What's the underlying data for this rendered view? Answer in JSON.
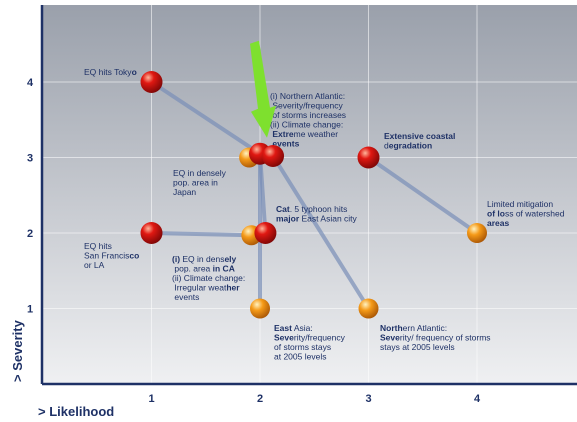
{
  "colors": {
    "background_top": "#9aa0ab",
    "background_mid": "#c9ccd2",
    "background_bottom": "#eff0f2",
    "axis": "#1e3166",
    "text": "#1e3166",
    "link_line": "#7a8fb8",
    "severe_bubble": "#e01812",
    "moderate_bubble": "#f59a18",
    "arrow": "#7ee02e"
  },
  "chart_data": {
    "type": "scatter",
    "title": "",
    "xlabel": "> Likelihood",
    "ylabel": "> Severity",
    "xlim": [
      0,
      5
    ],
    "ylim": [
      0,
      5
    ],
    "x_ticks": [
      "1",
      "2",
      "3",
      "4"
    ],
    "y_ticks": [
      "1",
      "2",
      "3",
      "4"
    ],
    "grid": true,
    "points": [
      {
        "id": "tokyo",
        "x": 1.0,
        "y": 4.0,
        "severity_class": "severe",
        "label": [
          [
            {
              "t": "EQ hits Toky"
            },
            {
              "t": "o",
              "b": true
            }
          ]
        ]
      },
      {
        "id": "sf-la",
        "x": 1.0,
        "y": 2.0,
        "severity_class": "severe",
        "label": [
          [
            {
              "t": "EQ hits"
            }
          ],
          [
            {
              "t": "San Francis"
            },
            {
              "t": "co",
              "b": true
            }
          ],
          [
            {
              "t": "or LA"
            }
          ]
        ]
      },
      {
        "id": "japan-severe",
        "x": 2.0,
        "y": 3.05,
        "severity_class": "severe",
        "label": null
      },
      {
        "id": "atlantic-severe",
        "x": 2.12,
        "y": 3.02,
        "severity_class": "severe",
        "label": [
          [
            {
              "t": "(i)   Northern Atlantic:"
            }
          ],
          [
            {
              "t": "       Severity/frequency"
            }
          ],
          [
            {
              "t": "       of storms increases"
            }
          ],
          [
            {
              "t": "(ii)  Climate change:"
            }
          ],
          [
            {
              "t": "       "
            },
            {
              "t": "Extre",
              "b": true
            },
            {
              "t": "me weather"
            }
          ],
          [
            {
              "t": "       "
            },
            {
              "t": "events",
              "b": true
            }
          ]
        ]
      },
      {
        "id": "japan-moderate",
        "x": 1.9,
        "y": 3.0,
        "severity_class": "moderate",
        "label": [
          [
            {
              "t": "EQ in densely"
            }
          ],
          [
            {
              "t": "pop. area in"
            }
          ],
          [
            {
              "t": "Japan"
            }
          ]
        ]
      },
      {
        "id": "coastal",
        "x": 3.0,
        "y": 3.0,
        "severity_class": "severe",
        "label": [
          [
            {
              "t": "Extensive coastal",
              "b": true
            }
          ],
          [
            {
              "t": "d"
            },
            {
              "t": "egradation",
              "b": true
            }
          ]
        ]
      },
      {
        "id": "typhoon",
        "x": 2.05,
        "y": 2.0,
        "severity_class": "severe",
        "label": [
          [
            {
              "t": "Cat",
              "b": true
            },
            {
              "t": ". 5 typhoon hits"
            }
          ],
          [
            {
              "t": "major",
              "b": true
            },
            {
              "t": " East Asian city"
            }
          ]
        ]
      },
      {
        "id": "ca-moderate",
        "x": 1.92,
        "y": 1.97,
        "severity_class": "moderate",
        "label": [
          [
            {
              "t": "(i)",
              "b": true
            },
            {
              "t": "   EQ in dens"
            },
            {
              "t": "ely",
              "b": true
            }
          ],
          [
            {
              "t": "      pop. area "
            },
            {
              "t": "in CA",
              "b": true
            }
          ],
          [
            {
              "t": "(ii)  Climate change:"
            }
          ],
          [
            {
              "t": "      Irregular weat"
            },
            {
              "t": "her",
              "b": true
            }
          ],
          [
            {
              "t": "      events"
            }
          ]
        ]
      },
      {
        "id": "watershed",
        "x": 4.0,
        "y": 2.0,
        "severity_class": "moderate",
        "label": [
          [
            {
              "t": "Limited mitigation"
            }
          ],
          [
            {
              "t": "of lo",
              "b": true
            },
            {
              "t": "ss of watershed"
            }
          ],
          [
            {
              "t": "areas",
              "b": true
            }
          ]
        ]
      },
      {
        "id": "east-asia",
        "x": 2.0,
        "y": 1.0,
        "severity_class": "moderate",
        "label": [
          [
            {
              "t": "East",
              "b": true
            },
            {
              "t": " Asia:"
            }
          ],
          [
            {
              "t": "Seve",
              "b": true
            },
            {
              "t": "rity/frequency"
            }
          ],
          [
            {
              "t": "of storms stays"
            }
          ],
          [
            {
              "t": "at 2005 levels"
            }
          ]
        ]
      },
      {
        "id": "atlantic-moderate",
        "x": 3.0,
        "y": 1.0,
        "severity_class": "moderate",
        "label": [
          [
            {
              "t": "North",
              "b": true
            },
            {
              "t": "ern Atlantic:"
            }
          ],
          [
            {
              "t": "Seve",
              "b": true
            },
            {
              "t": "rity/ frequency of storms"
            }
          ],
          [
            {
              "t": "stays at 2005 levels"
            }
          ]
        ]
      }
    ],
    "links": [
      [
        "tokyo",
        "japan-severe"
      ],
      [
        "sf-la",
        "ca-moderate"
      ],
      [
        "coastal",
        "watershed"
      ],
      [
        "japan-severe",
        "east-asia"
      ],
      [
        "atlantic-severe",
        "atlantic-moderate"
      ],
      [
        "japan-severe",
        "typhoon"
      ]
    ],
    "highlight_arrow_target": "japan-severe"
  }
}
